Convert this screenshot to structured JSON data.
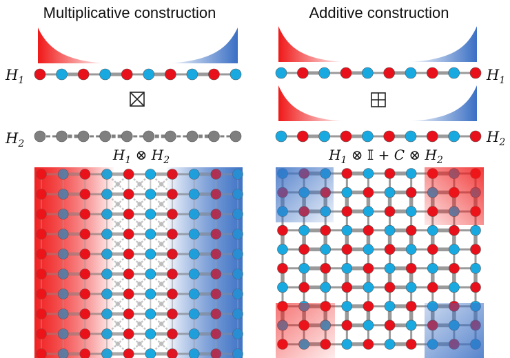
{
  "titles": {
    "left": "Multiplicative construction",
    "right": "Additive construction"
  },
  "labels": {
    "h1_left": "H",
    "h1_left_sub": "1",
    "h2_left": "H",
    "h2_left_sub": "2",
    "h1_right": "H",
    "h1_right_sub": "1",
    "h2_right": "H",
    "h2_right_sub": "2"
  },
  "formulas": {
    "left": [
      "H",
      "1",
      " ⊗ ",
      "H",
      "2"
    ],
    "right": [
      "H",
      "1",
      " ⊗ 𝕀 + ",
      "C",
      " ⊗ ",
      "H",
      "2"
    ]
  },
  "symbols": {
    "box_times": "box-times-icon",
    "box_plus": "box-plus-icon"
  },
  "colors": {
    "red": "#e8101a",
    "blue": "#19a9e1",
    "gray": "#7f7f7f",
    "bond": "#9a9a9a",
    "gradient_red": "#f01818",
    "gradient_blue": "#3a6fc4"
  }
}
